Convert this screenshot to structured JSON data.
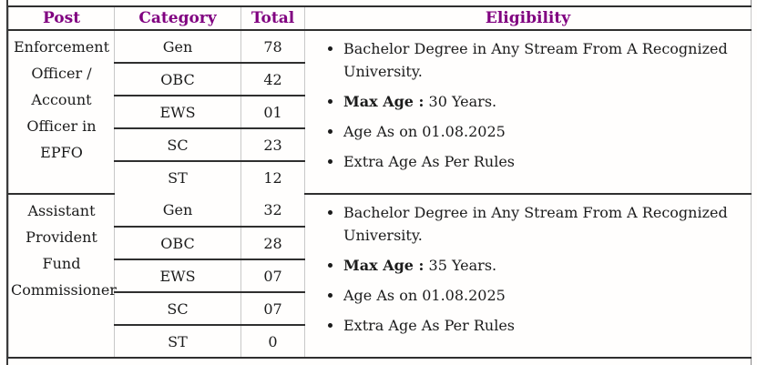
{
  "colors": {
    "header_text": "#800080",
    "body_text": "#1b1b1b",
    "row_border": "#2f2f2f",
    "column_border": "#c8c8c8"
  },
  "table": {
    "headers": {
      "post": "Post",
      "category": "Category",
      "total": "Total",
      "eligibility": "Eligibility"
    },
    "posts": [
      {
        "post": "Enforcement Officer / Account Officer in EPFO",
        "rows": [
          [
            "Gen",
            "78"
          ],
          [
            "OBC",
            "42"
          ],
          [
            "EWS",
            "01"
          ],
          [
            "SC",
            "23"
          ],
          [
            "ST",
            "12"
          ]
        ],
        "eligibility": [
          {
            "b": "",
            "t": "Bachelor Degree in Any Stream From A Recognized University."
          },
          {
            "b": "Max Age :",
            "t": " 30 Years."
          },
          {
            "b": "",
            "t": "Age As on 01.08.2025"
          },
          {
            "b": "",
            "t": "Extra Age As Per Rules"
          }
        ]
      },
      {
        "post": "Assistant Provident Fund Commissioner",
        "rows": [
          [
            "Gen",
            "32"
          ],
          [
            "OBC",
            "28"
          ],
          [
            "EWS",
            "07"
          ],
          [
            "SC",
            "07"
          ],
          [
            "ST",
            "0"
          ]
        ],
        "eligibility": [
          {
            "b": "",
            "t": "Bachelor Degree in Any Stream From A Recognized University."
          },
          {
            "b": "Max Age :",
            "t": " 35 Years."
          },
          {
            "b": "",
            "t": "Age As on 01.08.2025"
          },
          {
            "b": "",
            "t": "Extra Age As Per Rules"
          }
        ]
      }
    ]
  }
}
